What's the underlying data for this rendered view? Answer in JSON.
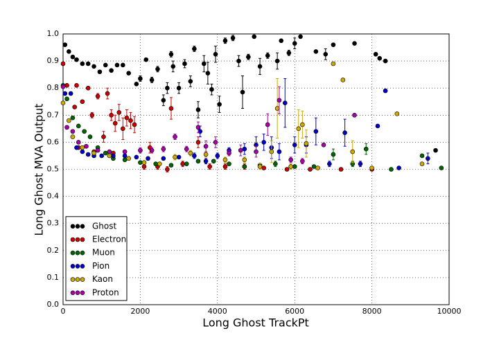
{
  "chart_data": {
    "type": "scatter",
    "xlabel": "Long Ghost TrackPt",
    "ylabel": "Long Ghost MVA Output",
    "xlim": [
      0,
      10000
    ],
    "ylim": [
      0,
      1
    ],
    "xticks": [
      0,
      2000,
      4000,
      6000,
      8000,
      10000
    ],
    "yticks": [
      {
        "value": 0,
        "label": "0.0"
      },
      0.1,
      0.2,
      0.3,
      0.4,
      0.5,
      0.6,
      0.7,
      0.8,
      0.9,
      {
        "value": 1,
        "label": "1.0"
      }
    ],
    "grid": true,
    "legend": "lower left",
    "series": [
      {
        "name": "Ghost",
        "color": "#000000",
        "x": [
          50,
          150,
          250,
          350,
          500,
          650,
          800,
          950,
          1100,
          1250,
          1400,
          1550,
          1700,
          1900,
          2000,
          2150,
          2300,
          2450,
          2600,
          2700,
          2800,
          2850,
          3000,
          3150,
          3300,
          3400,
          3500,
          3650,
          3750,
          3850,
          3950,
          4050,
          4200,
          4400,
          4550,
          4650,
          4800,
          4950,
          5100,
          5300,
          5550,
          5650,
          5850,
          6000,
          6150,
          6550,
          6800,
          7000,
          7550,
          8100,
          8200,
          8350,
          9650
        ],
        "values": [
          0.96,
          0.935,
          0.915,
          0.905,
          0.89,
          0.89,
          0.88,
          0.86,
          0.885,
          0.865,
          0.885,
          0.885,
          0.855,
          0.815,
          0.835,
          0.905,
          0.83,
          0.87,
          0.755,
          0.8,
          0.925,
          0.88,
          0.8,
          0.89,
          0.825,
          0.945,
          0.72,
          0.89,
          0.855,
          0.795,
          0.925,
          0.74,
          0.975,
          0.985,
          0.9,
          0.785,
          0.915,
          0.99,
          0.88,
          0.92,
          0.9,
          0.975,
          0.93,
          0.965,
          0.99,
          0.935,
          0.925,
          0.96,
          0.965,
          0.925,
          0.91,
          0.9,
          0.57
        ],
        "errors": [
          0.005,
          0.005,
          0.005,
          0.005,
          0.005,
          0.005,
          0.005,
          0.005,
          0.005,
          0.005,
          0.005,
          0.005,
          0.005,
          0.005,
          0.01,
          0.005,
          0.01,
          0.01,
          0.02,
          0.02,
          0.01,
          0.02,
          0.02,
          0.015,
          0.02,
          0.01,
          0.03,
          0.03,
          0.04,
          0.02,
          0.03,
          0.03,
          0.01,
          0.01,
          0.02,
          0.06,
          0.01,
          0.005,
          0.03,
          0.01,
          0.03,
          0.005,
          0.01,
          0.02,
          0.005,
          0.005,
          0.02,
          0.005,
          0.005,
          0.005,
          0.005,
          0.005,
          0.005
        ]
      },
      {
        "name": "Electron",
        "color": "#cc0000",
        "x": [
          0,
          100,
          300,
          350,
          400,
          500,
          650,
          750,
          800,
          900,
          1050,
          1150,
          1250,
          1300,
          1350,
          1450,
          1550,
          1650,
          1750,
          1850,
          2100,
          2250,
          2450,
          2700,
          2800,
          3100,
          3500,
          3800,
          4200,
          4700,
          5200,
          5800,
          6400,
          7200,
          8000
        ],
        "values": [
          0.89,
          0.81,
          0.73,
          0.81,
          0.58,
          0.75,
          0.8,
          0.7,
          0.565,
          0.77,
          0.62,
          0.78,
          0.7,
          0.56,
          0.67,
          0.71,
          0.65,
          0.69,
          0.68,
          0.665,
          0.51,
          0.58,
          0.51,
          0.5,
          0.725,
          0.52,
          0.6,
          0.51,
          0.51,
          0.51,
          0.505,
          0.5,
          0.5,
          0.5,
          0.5
        ],
        "errors": [
          0.005,
          0.005,
          0.005,
          0.005,
          0.005,
          0.005,
          0.005,
          0.01,
          0.005,
          0.01,
          0.02,
          0.02,
          0.02,
          0.005,
          0.03,
          0.03,
          0.04,
          0.03,
          0.03,
          0.03,
          0.01,
          0.02,
          0.01,
          0.01,
          0.04,
          0.01,
          0.02,
          0.01,
          0.01,
          0.01,
          0.005,
          0.005,
          0.005,
          0.005,
          0.005
        ]
      },
      {
        "name": "Muon",
        "color": "#006600",
        "x": [
          0,
          100,
          250,
          400,
          550,
          700,
          900,
          1100,
          1300,
          1600,
          2000,
          2400,
          2800,
          3200,
          3500,
          3900,
          4300,
          4700,
          5100,
          5500,
          6000,
          6500,
          7000,
          7500,
          7850,
          8500,
          9300,
          9800
        ],
        "values": [
          0.81,
          0.76,
          0.69,
          0.66,
          0.64,
          0.62,
          0.58,
          0.56,
          0.54,
          0.535,
          0.525,
          0.52,
          0.515,
          0.52,
          0.53,
          0.53,
          0.52,
          0.51,
          0.515,
          0.52,
          0.51,
          0.51,
          0.555,
          0.52,
          0.575,
          0.5,
          0.55,
          0.505
        ],
        "errors": [
          0.005,
          0.005,
          0.005,
          0.005,
          0.005,
          0.005,
          0.005,
          0.005,
          0.005,
          0.005,
          0.005,
          0.005,
          0.005,
          0.005,
          0.005,
          0.005,
          0.005,
          0.005,
          0.005,
          0.01,
          0.005,
          0.005,
          0.02,
          0.01,
          0.02,
          0.005,
          0.005,
          0.005
        ]
      },
      {
        "name": "Pion",
        "color": "#0000cc",
        "x": [
          50,
          200,
          350,
          500,
          650,
          800,
          1000,
          1300,
          1600,
          1900,
          2200,
          2600,
          3000,
          3400,
          3550,
          3700,
          4000,
          4300,
          4700,
          5000,
          5200,
          5400,
          5600,
          5750,
          6000,
          6300,
          6550,
          6900,
          7300,
          7700,
          8150,
          8350,
          8700,
          9450
        ],
        "values": [
          0.78,
          0.78,
          0.58,
          0.565,
          0.555,
          0.55,
          0.55,
          0.55,
          0.55,
          0.545,
          0.54,
          0.54,
          0.545,
          0.55,
          0.64,
          0.53,
          0.55,
          0.57,
          0.575,
          0.59,
          0.6,
          0.58,
          0.565,
          0.745,
          0.59,
          0.59,
          0.64,
          0.52,
          0.635,
          0.52,
          0.66,
          0.79,
          0.505,
          0.54
        ],
        "errors": [
          0.005,
          0.005,
          0.005,
          0.005,
          0.005,
          0.005,
          0.005,
          0.005,
          0.005,
          0.005,
          0.005,
          0.005,
          0.005,
          0.01,
          0.02,
          0.01,
          0.01,
          0.01,
          0.02,
          0.03,
          0.03,
          0.04,
          0.03,
          0.09,
          0.03,
          0.03,
          0.05,
          0.01,
          0.05,
          0.01,
          0.005,
          0.005,
          0.005,
          0.02
        ]
      },
      {
        "name": "Kaon",
        "color": "#ccaa00",
        "x": [
          0,
          150,
          250,
          500,
          800,
          1200,
          1700,
          2100,
          2500,
          2900,
          3300,
          3700,
          4200,
          4700,
          5100,
          5400,
          5550,
          5900,
          6100,
          6200,
          6300,
          6600,
          7000,
          7250,
          7500,
          8000,
          8650,
          9300
        ],
        "values": [
          0.745,
          0.68,
          0.62,
          0.58,
          0.56,
          0.55,
          0.54,
          0.525,
          0.52,
          0.545,
          0.56,
          0.555,
          0.535,
          0.535,
          0.51,
          0.565,
          0.725,
          0.51,
          0.65,
          0.665,
          0.595,
          0.505,
          0.89,
          0.83,
          0.565,
          0.505,
          0.705,
          0.52
        ],
        "errors": [
          0.005,
          0.005,
          0.005,
          0.005,
          0.005,
          0.005,
          0.005,
          0.005,
          0.005,
          0.01,
          0.01,
          0.01,
          0.01,
          0.01,
          0.01,
          0.04,
          0.11,
          0.01,
          0.07,
          0.05,
          0.05,
          0.005,
          0.005,
          0.005,
          0.04,
          0.005,
          0.005,
          0.005
        ]
      },
      {
        "name": "Proton",
        "color": "#aa00aa",
        "x": [
          0,
          100,
          250,
          400,
          600,
          900,
          1200,
          1600,
          2000,
          2300,
          2600,
          2900,
          3200,
          3500,
          3700,
          3950,
          4300,
          4600,
          5000,
          5300,
          5600,
          5900,
          6200,
          6750,
          7550
        ],
        "values": [
          0.805,
          0.655,
          0.64,
          0.6,
          0.585,
          0.57,
          0.565,
          0.565,
          0.57,
          0.57,
          0.575,
          0.62,
          0.575,
          0.655,
          0.585,
          0.6,
          0.56,
          0.57,
          0.565,
          0.665,
          0.755,
          0.535,
          0.53,
          0.59,
          0.7
        ],
        "errors": [
          0.005,
          0.005,
          0.005,
          0.005,
          0.005,
          0.005,
          0.005,
          0.005,
          0.01,
          0.01,
          0.01,
          0.01,
          0.01,
          0.02,
          0.02,
          0.02,
          0.01,
          0.02,
          0.02,
          0.04,
          0.05,
          0.01,
          0.01,
          0.005,
          0.005
        ]
      }
    ]
  }
}
